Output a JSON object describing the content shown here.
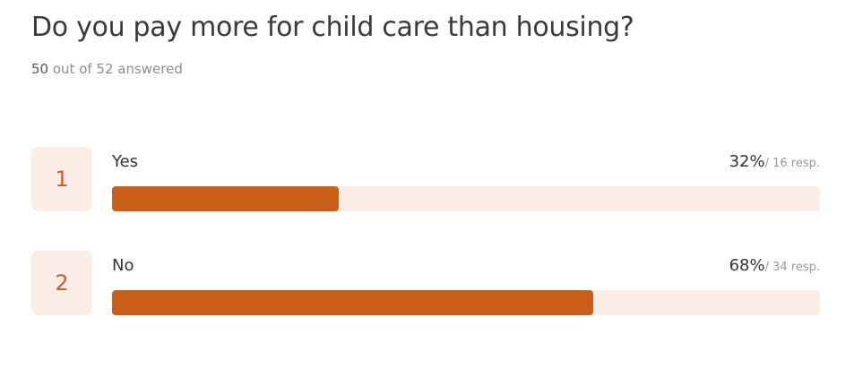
{
  "question": {
    "title": "Do you pay more for child care than housing?",
    "answered_count": "50",
    "answered_suffix": " out of 52 answered"
  },
  "colors": {
    "accent": "#cc5f18",
    "accent_light": "#faede5",
    "number_text": "#c8602a"
  },
  "options": [
    {
      "number": "1",
      "label": "Yes",
      "percent_text": "32%",
      "resp_text": "/ 16 resp.",
      "fraction": 0.32
    },
    {
      "number": "2",
      "label": "No",
      "percent_text": "68%",
      "resp_text": "/ 34 resp.",
      "fraction": 0.68
    }
  ]
}
